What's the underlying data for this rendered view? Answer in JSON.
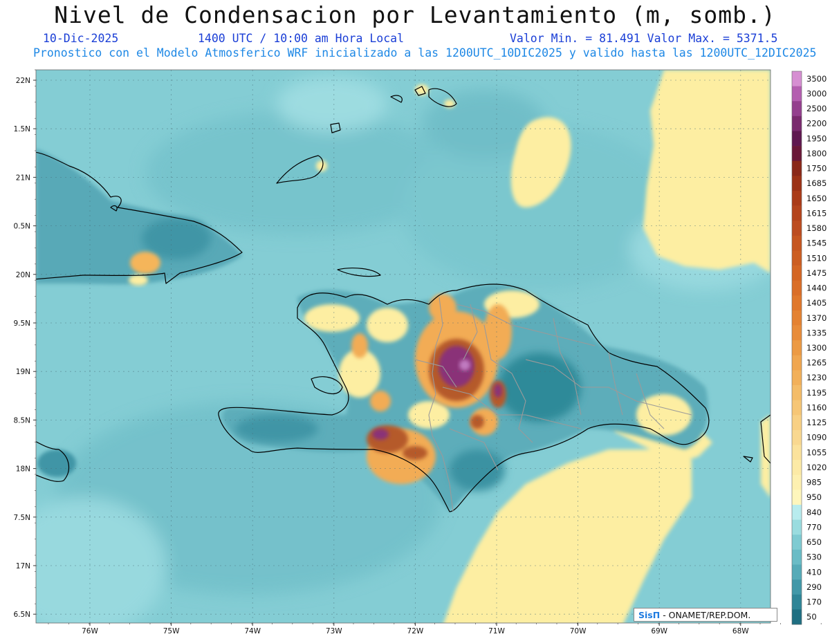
{
  "header": {
    "title": "Nivel de Condensacion por Levantamiento (m, somb.)",
    "date": "10-Dic-2025",
    "time": "1400 UTC / 10:00 am Hora Local",
    "minmax": "Valor Min. = 81.491  Valor Max. = 5371.5",
    "description": "Pronostico con el Modelo Atmosferico WRF inicializado a las 1200UTC_10DIC2025 y valido hasta las  1200UTC_12DIC2025"
  },
  "map": {
    "lat_labels": [
      "22N",
      "1.5N",
      "21N",
      "0.5N",
      "20N",
      "9.5N",
      "19N",
      "8.5N",
      "18N",
      "7.5N",
      "17N",
      "6.5N"
    ],
    "lon_labels": [
      "76W",
      "75W",
      "74W",
      "73W",
      "72W",
      "71W",
      "70W",
      "69W",
      "68W"
    ],
    "colors": {
      "ocean": "#7fcbd2",
      "land_mid": "#4aa6b4",
      "land_dark": "#2e8a98",
      "yellow": "#fdeea0",
      "orange": "#f4b45c",
      "brown": "#b5592a",
      "purple": "#8a2e78",
      "border_gray": "#9a9a9a",
      "coast": "#000000"
    }
  },
  "colorbar": {
    "levels": [
      "3500",
      "3000",
      "2500",
      "2200",
      "1950",
      "1800",
      "1750",
      "1685",
      "1650",
      "1615",
      "1580",
      "1545",
      "1510",
      "1475",
      "1440",
      "1405",
      "1370",
      "1335",
      "1300",
      "1265",
      "1230",
      "1195",
      "1160",
      "1125",
      "1090",
      "1055",
      "1020",
      "985",
      "950",
      "840",
      "770",
      "650",
      "530",
      "410",
      "290",
      "170",
      "50"
    ],
    "colors": [
      "#d68fd2",
      "#b45fb0",
      "#94408e",
      "#7a2a6e",
      "#5f1850",
      "#6a1838",
      "#8a2818",
      "#9c3216",
      "#aa3b18",
      "#b4441c",
      "#bc4c20",
      "#c65620",
      "#cc5e22",
      "#d46624",
      "#da6e28",
      "#e0782c",
      "#e48232",
      "#e88c3a",
      "#ec9a44",
      "#f0a650",
      "#f2b05a",
      "#f4bc68",
      "#f6c676",
      "#f8d084",
      "#f9d890",
      "#fbe29c",
      "#fceaa6",
      "#fdf0b0",
      "#fef6bc",
      "#b8ecee",
      "#9adcdf",
      "#7fcbd2",
      "#6abcc6",
      "#56abb8",
      "#4298a8",
      "#2f8597",
      "#1f6f82"
    ]
  },
  "credit": {
    "logo": "SisΠ",
    "text": "- ONAMET/REP.DOM."
  }
}
